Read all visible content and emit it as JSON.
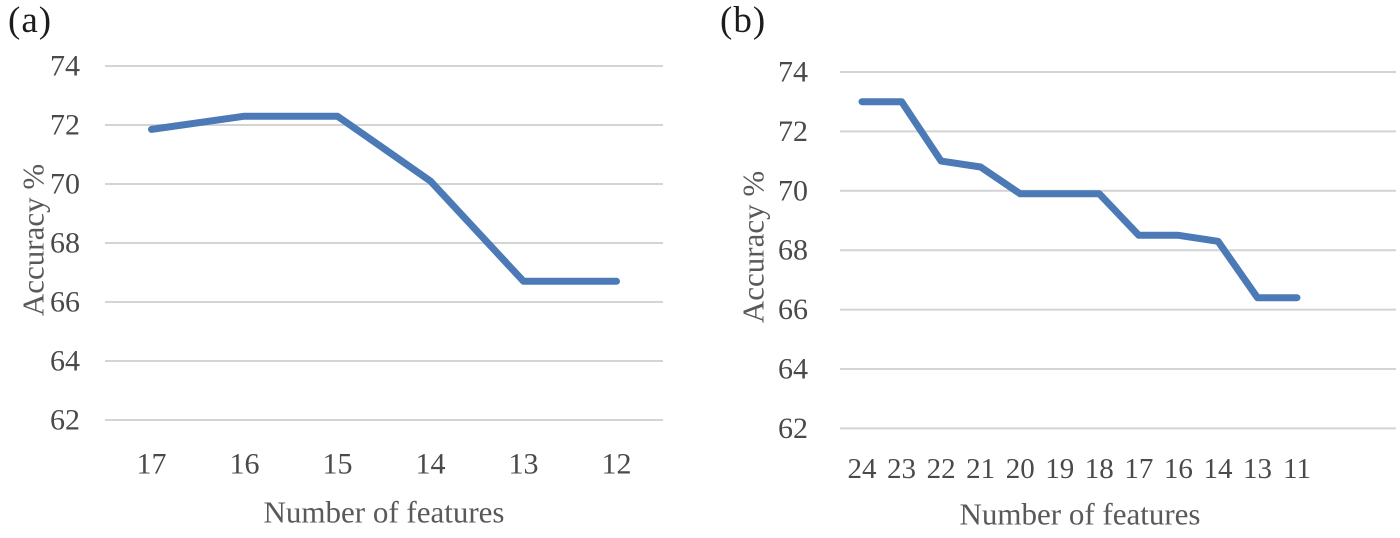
{
  "figure": {
    "panels": [
      {
        "label": "(a)"
      },
      {
        "label": "(b)"
      }
    ]
  },
  "chart_data": [
    {
      "type": "line",
      "panel_label": "(a)",
      "title": "",
      "xlabel": "Number of features",
      "ylabel": "Accuracy %",
      "categories": [
        "17",
        "16",
        "15",
        "14",
        "13",
        "12"
      ],
      "values": [
        71.85,
        72.3,
        72.3,
        70.1,
        66.7,
        66.7
      ],
      "yticks": [
        74,
        72,
        70,
        68,
        66,
        64,
        62
      ],
      "ylim": [
        62,
        74
      ],
      "grid": "horizontal",
      "legend": "none"
    },
    {
      "type": "line",
      "panel_label": "(b)",
      "title": "",
      "xlabel": "Number of features",
      "ylabel": "Accuracy %",
      "categories": [
        "24",
        "23",
        "22",
        "21",
        "20",
        "19",
        "18",
        "17",
        "16",
        "14",
        "13",
        "11"
      ],
      "values": [
        73.0,
        73.0,
        71.0,
        70.8,
        69.9,
        69.9,
        69.9,
        68.5,
        68.5,
        68.3,
        66.4,
        66.4
      ],
      "yticks": [
        74,
        72,
        70,
        68,
        66,
        64,
        62
      ],
      "ylim": [
        62,
        74
      ],
      "grid": "horizontal",
      "legend": "none"
    }
  ],
  "colors": {
    "line": "#4b7ab6",
    "gridline": "#d4d4d4",
    "tick_text": "#4a4a4a",
    "axis_title_text": "#595959",
    "panel_label_text": "#1c1c1c",
    "background": "#ffffff"
  }
}
